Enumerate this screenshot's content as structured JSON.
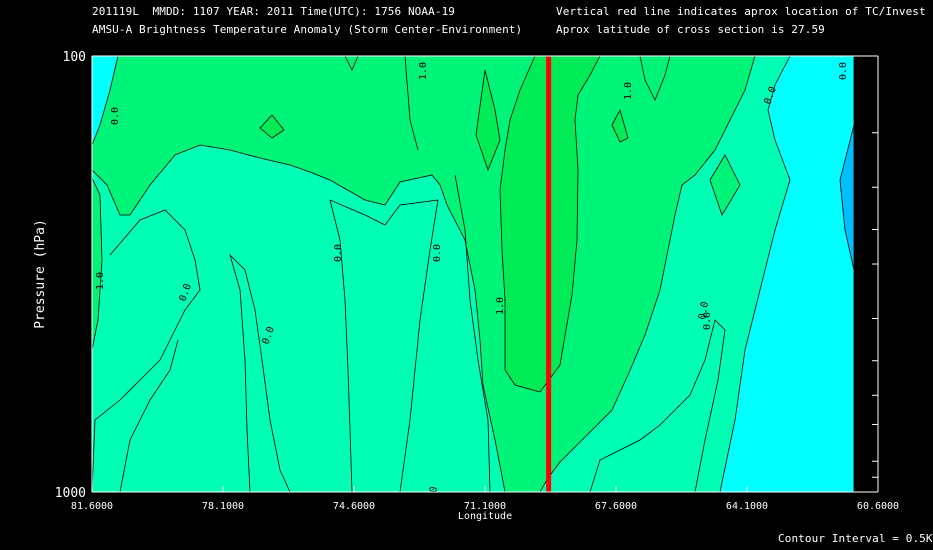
{
  "header": {
    "line1": "201119L  MMDD: 1107 YEAR: 2011 Time(UTC): 1756 NOAA-19",
    "line2": "AMSU-A Brightness Temperature Anomaly (Storm Center-Environment)",
    "note1": "Vertical red line indicates aprox location of TC/Invest",
    "note2": "Aprox latitude of cross section is 27.59"
  },
  "footer": {
    "contour_interval": "Contour Interval = 0.5K"
  },
  "chart_data": {
    "type": "contour",
    "xlabel": "Longitude",
    "ylabel": "Pressure (hPa)",
    "x_reversed": true,
    "xlim": [
      81.6,
      60.6
    ],
    "ylim": [
      1000,
      100
    ],
    "y_scale": "log",
    "x_ticks": [
      "81.6000",
      "78.1000",
      "74.6000",
      "71.1000",
      "67.6000",
      "64.1000",
      "60.6000"
    ],
    "y_tick_labels": [
      "100",
      "1000"
    ],
    "y_ticks_unlabeled": [
      150,
      200,
      250,
      300,
      400,
      500,
      600,
      700,
      850,
      925
    ],
    "storm_longitude": 69.4,
    "contour_interval_K": 0.5,
    "fill_colors": {
      "lt_-0.5": "#00bfff",
      "-0.5_to_0.0": "#00ffff",
      "0.0_to_0.5": "#00ffb4",
      "0.5_to_1.0": "#00f478",
      "1.0_to_1.5": "#00eb55"
    },
    "contour_labels": [
      "0.0",
      "0.0",
      "0.0",
      "0.0",
      "0.0",
      "0.0",
      "0.0",
      "0.0",
      "0.0",
      "0.0",
      "1.0",
      "1.0",
      "1.0",
      "1.0"
    ]
  }
}
